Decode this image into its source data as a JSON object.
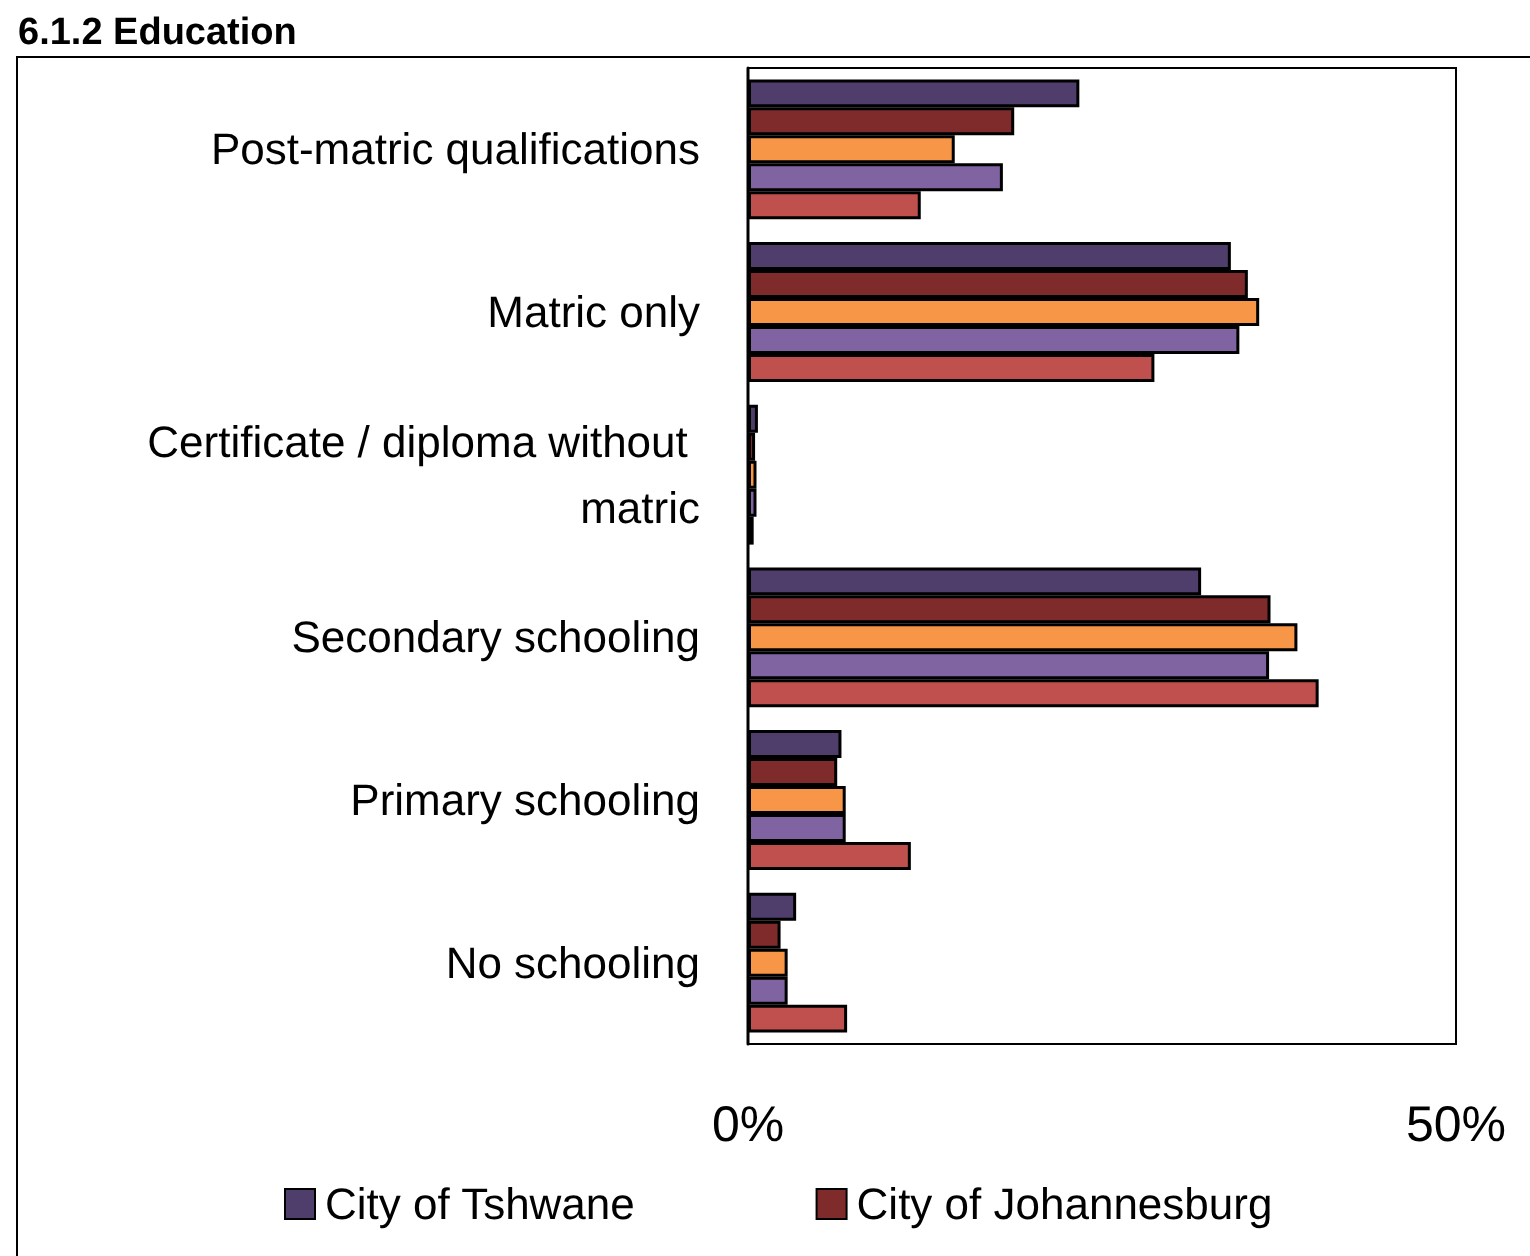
{
  "chart_data": {
    "type": "bar",
    "orientation": "horizontal",
    "title": "6.1.2 Education",
    "categories": [
      "Post-matric qualifications",
      "Matric only",
      "Certificate / diploma without matric",
      "Secondary schooling",
      "Primary schooling",
      "No schooling"
    ],
    "series": [
      {
        "name": "City of Tshwane",
        "color": "#4f3d6b",
        "values": [
          23.4,
          34.1,
          0.7,
          32.0,
          6.6,
          3.4
        ]
      },
      {
        "name": "City of Johannesburg",
        "color": "#7f2b2b",
        "values": [
          18.8,
          35.3,
          0.5,
          36.9,
          6.3,
          2.3
        ]
      },
      {
        "color": "#f79646",
        "values": [
          14.6,
          36.1,
          0.6,
          38.8,
          6.9,
          2.8
        ]
      },
      {
        "color": "#8064a2",
        "values": [
          18.0,
          34.7,
          0.6,
          36.8,
          6.9,
          2.8
        ]
      },
      {
        "color": "#c0504d",
        "values": [
          12.2,
          28.7,
          0.4,
          40.3,
          11.5,
          7.0
        ]
      }
    ],
    "xlim": [
      0,
      50
    ],
    "xticks": [
      {
        "value": 0,
        "label": "0%"
      },
      {
        "value": 50,
        "label": "50%"
      }
    ],
    "grid": false,
    "legend": "bottom"
  }
}
